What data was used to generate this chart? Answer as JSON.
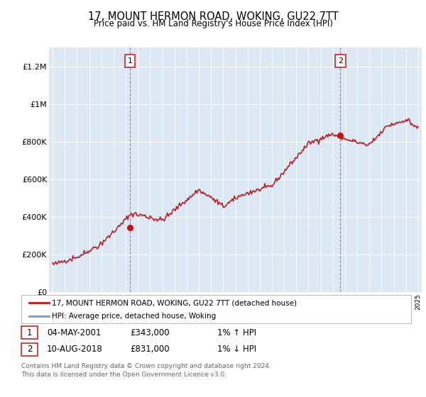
{
  "title": "17, MOUNT HERMON ROAD, WOKING, GU22 7TT",
  "subtitle": "Price paid vs. HM Land Registry's House Price Index (HPI)",
  "ylabel_ticks": [
    "£0",
    "£200K",
    "£400K",
    "£600K",
    "£800K",
    "£1M",
    "£1.2M"
  ],
  "ytick_values": [
    0,
    200000,
    400000,
    600000,
    800000,
    1000000,
    1200000
  ],
  "ylim": [
    0,
    1300000
  ],
  "xlim_start": 1994.7,
  "xlim_end": 2025.3,
  "hpi_color": "#7799cc",
  "price_color": "#cc1111",
  "bg_color": "#dce9f5",
  "legend_label1": "17, MOUNT HERMON ROAD, WOKING, GU22 7TT (detached house)",
  "legend_label2": "HPI: Average price, detached house, Woking",
  "annotation1_date": "04-MAY-2001",
  "annotation1_price": "£343,000",
  "annotation1_hpi": "1% ↑ HPI",
  "annotation2_date": "10-AUG-2018",
  "annotation2_price": "£831,000",
  "annotation2_hpi": "1% ↓ HPI",
  "footer": "Contains HM Land Registry data © Crown copyright and database right 2024.\nThis data is licensed under the Open Government Licence v3.0.",
  "marker1_x": 2001.35,
  "marker1_y": 343000,
  "marker2_x": 2018.62,
  "marker2_y": 831000
}
